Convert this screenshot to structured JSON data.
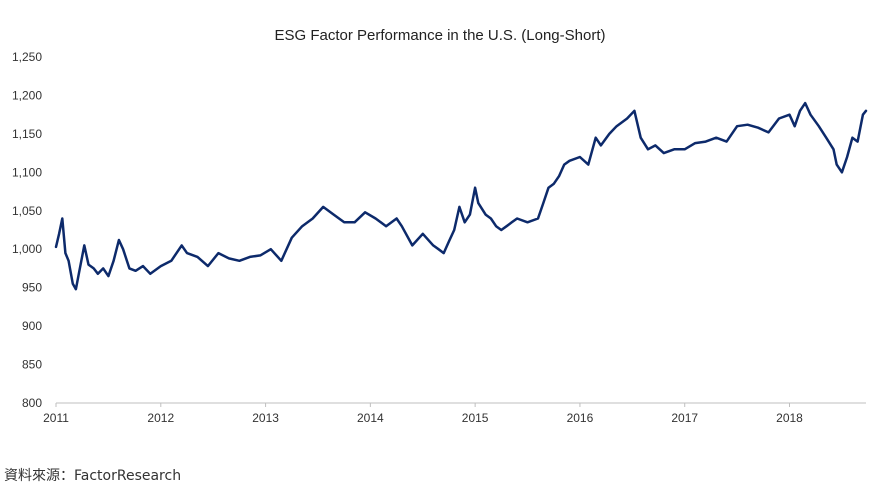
{
  "chart_data": {
    "type": "line",
    "title": "ESG Factor Performance in the U.S. (Long-Short)",
    "xlabel": "",
    "ylabel": "",
    "x_tick_labels": [
      "2011",
      "2012",
      "2013",
      "2014",
      "2015",
      "2016",
      "2017",
      "2018"
    ],
    "y_tick_labels": [
      "800",
      "850",
      "900",
      "950",
      "1,000",
      "1,050",
      "1,100",
      "1,150",
      "1,200",
      "1,250"
    ],
    "ylim": [
      800,
      1250
    ],
    "xlim": [
      2011.0,
      2018.73
    ],
    "grid": false,
    "legend": "none",
    "series": [
      {
        "color": "#0d2a6b",
        "x": [
          2011.0,
          2011.03,
          2011.06,
          2011.09,
          2011.12,
          2011.16,
          2011.19,
          2011.22,
          2011.27,
          2011.31,
          2011.36,
          2011.4,
          2011.45,
          2011.5,
          2011.55,
          2011.6,
          2011.64,
          2011.7,
          2011.76,
          2011.83,
          2011.9,
          2012.0,
          2012.1,
          2012.2,
          2012.25,
          2012.35,
          2012.45,
          2012.55,
          2012.65,
          2012.75,
          2012.85,
          2012.95,
          2013.05,
          2013.15,
          2013.25,
          2013.35,
          2013.45,
          2013.55,
          2013.65,
          2013.75,
          2013.85,
          2013.95,
          2014.05,
          2014.15,
          2014.25,
          2014.3,
          2014.4,
          2014.5,
          2014.6,
          2014.65,
          2014.7,
          2014.75,
          2014.8,
          2014.85,
          2014.9,
          2014.95,
          2015.0,
          2015.03,
          2015.1,
          2015.15,
          2015.2,
          2015.25,
          2015.3,
          2015.35,
          2015.4,
          2015.5,
          2015.6,
          2015.65,
          2015.7,
          2015.75,
          2015.8,
          2015.85,
          2015.9,
          2016.0,
          2016.08,
          2016.15,
          2016.2,
          2016.28,
          2016.35,
          2016.45,
          2016.52,
          2016.58,
          2016.65,
          2016.72,
          2016.8,
          2016.9,
          2017.0,
          2017.1,
          2017.2,
          2017.3,
          2017.4,
          2017.5,
          2017.6,
          2017.7,
          2017.8,
          2017.9,
          2018.0,
          2018.05,
          2018.1,
          2018.15,
          2018.2,
          2018.28,
          2018.35,
          2018.42,
          2018.45,
          2018.5,
          2018.55,
          2018.6,
          2018.65,
          2018.7,
          2018.73
        ],
        "values": [
          1003,
          1020,
          1040,
          995,
          985,
          955,
          948,
          970,
          1005,
          980,
          975,
          968,
          975,
          965,
          985,
          1012,
          1000,
          975,
          972,
          978,
          968,
          978,
          985,
          1005,
          995,
          990,
          978,
          995,
          988,
          985,
          990,
          992,
          1000,
          985,
          1015,
          1030,
          1040,
          1055,
          1045,
          1035,
          1035,
          1048,
          1040,
          1030,
          1040,
          1030,
          1005,
          1020,
          1005,
          1000,
          995,
          1010,
          1025,
          1055,
          1035,
          1045,
          1080,
          1060,
          1045,
          1040,
          1030,
          1025,
          1030,
          1035,
          1040,
          1035,
          1040,
          1060,
          1080,
          1085,
          1095,
          1110,
          1115,
          1120,
          1110,
          1145,
          1135,
          1150,
          1160,
          1170,
          1180,
          1145,
          1130,
          1135,
          1125,
          1130,
          1130,
          1138,
          1140,
          1145,
          1140,
          1160,
          1162,
          1158,
          1152,
          1170,
          1175,
          1160,
          1180,
          1190,
          1175,
          1160,
          1145,
          1130,
          1110,
          1100,
          1120,
          1145,
          1140,
          1175,
          1180
        ]
      }
    ]
  },
  "source_text": "資料來源：FactorResearch"
}
